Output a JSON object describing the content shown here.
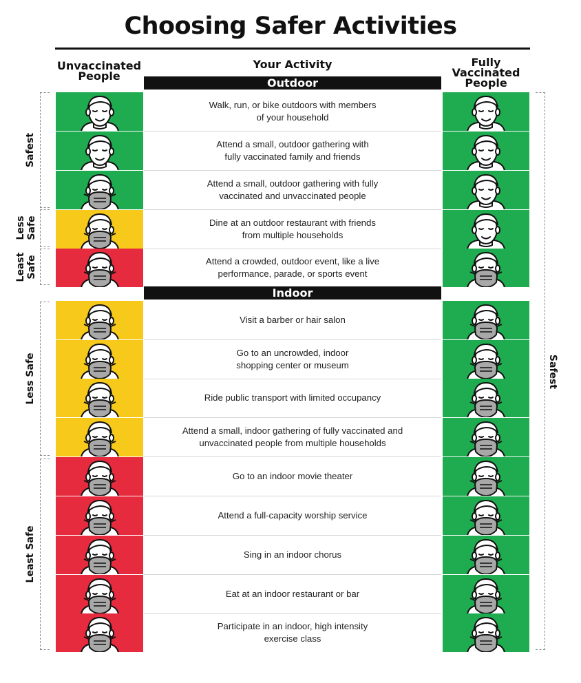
{
  "title": "Choosing Safer Activities",
  "columns": {
    "left": "Unvaccinated People",
    "center": "Your Activity",
    "right": "Fully Vaccinated People"
  },
  "sections": {
    "outdoor": "Outdoor",
    "indoor": "Indoor"
  },
  "colors": {
    "green": "#1fab4f",
    "yellow": "#f6c91b",
    "red": "#e52b3d",
    "mask": "#a8a8a8"
  },
  "left_brackets": [
    {
      "label": "Safest"
    },
    {
      "label_line1": "Less",
      "label_line2": "Safe"
    },
    {
      "label_line1": "Least",
      "label_line2": "Safe"
    },
    {
      "label": "Less Safe"
    },
    {
      "label": "Least Safe"
    }
  ],
  "right_bracket": {
    "label": "Safest"
  },
  "activities": [
    {
      "line1": "Walk, run, or bike outdoors with members",
      "line2": "of your household",
      "unvaccinated": {
        "color": "green",
        "mask": false
      },
      "vaccinated": {
        "color": "green",
        "mask": false
      }
    },
    {
      "line1": "Attend a small, outdoor gathering with",
      "line2": "fully vaccinated family and friends",
      "unvaccinated": {
        "color": "green",
        "mask": false
      },
      "vaccinated": {
        "color": "green",
        "mask": false
      }
    },
    {
      "line1": "Attend a small, outdoor gathering with fully",
      "line2": "vaccinated and unvaccinated people",
      "unvaccinated": {
        "color": "green",
        "mask": true
      },
      "vaccinated": {
        "color": "green",
        "mask": false
      }
    },
    {
      "line1": "Dine at an outdoor restaurant with friends",
      "line2": "from multiple households",
      "unvaccinated": {
        "color": "yellow",
        "mask": true
      },
      "vaccinated": {
        "color": "green",
        "mask": false
      }
    },
    {
      "line1": "Attend a crowded, outdoor event, like a live",
      "line2": "performance, parade, or sports event",
      "unvaccinated": {
        "color": "red",
        "mask": true
      },
      "vaccinated": {
        "color": "green",
        "mask": true
      }
    },
    {
      "line1": "Visit a barber or hair salon",
      "line2": "",
      "unvaccinated": {
        "color": "yellow",
        "mask": true
      },
      "vaccinated": {
        "color": "green",
        "mask": true
      }
    },
    {
      "line1": "Go to an uncrowded, indoor",
      "line2": "shopping center or museum",
      "unvaccinated": {
        "color": "yellow",
        "mask": true
      },
      "vaccinated": {
        "color": "green",
        "mask": true
      }
    },
    {
      "line1": "Ride public transport with limited occupancy",
      "line2": "",
      "unvaccinated": {
        "color": "yellow",
        "mask": true
      },
      "vaccinated": {
        "color": "green",
        "mask": true
      }
    },
    {
      "line1": "Attend a small, indoor gathering of fully vaccinated and",
      "line2": "unvaccinated people from multiple households",
      "unvaccinated": {
        "color": "yellow",
        "mask": true
      },
      "vaccinated": {
        "color": "green",
        "mask": true
      }
    },
    {
      "line1": "Go to an indoor movie theater",
      "line2": "",
      "unvaccinated": {
        "color": "red",
        "mask": true
      },
      "vaccinated": {
        "color": "green",
        "mask": true
      }
    },
    {
      "line1": "Attend a full-capacity worship service",
      "line2": "",
      "unvaccinated": {
        "color": "red",
        "mask": true
      },
      "vaccinated": {
        "color": "green",
        "mask": true
      }
    },
    {
      "line1": "Sing in an indoor chorus",
      "line2": "",
      "unvaccinated": {
        "color": "red",
        "mask": true
      },
      "vaccinated": {
        "color": "green",
        "mask": true
      }
    },
    {
      "line1": "Eat at an indoor restaurant or bar",
      "line2": "",
      "unvaccinated": {
        "color": "red",
        "mask": true
      },
      "vaccinated": {
        "color": "green",
        "mask": true
      }
    },
    {
      "line1": "Participate in an indoor, high intensity",
      "line2": "exercise class",
      "unvaccinated": {
        "color": "red",
        "mask": true
      },
      "vaccinated": {
        "color": "green",
        "mask": true
      }
    }
  ]
}
